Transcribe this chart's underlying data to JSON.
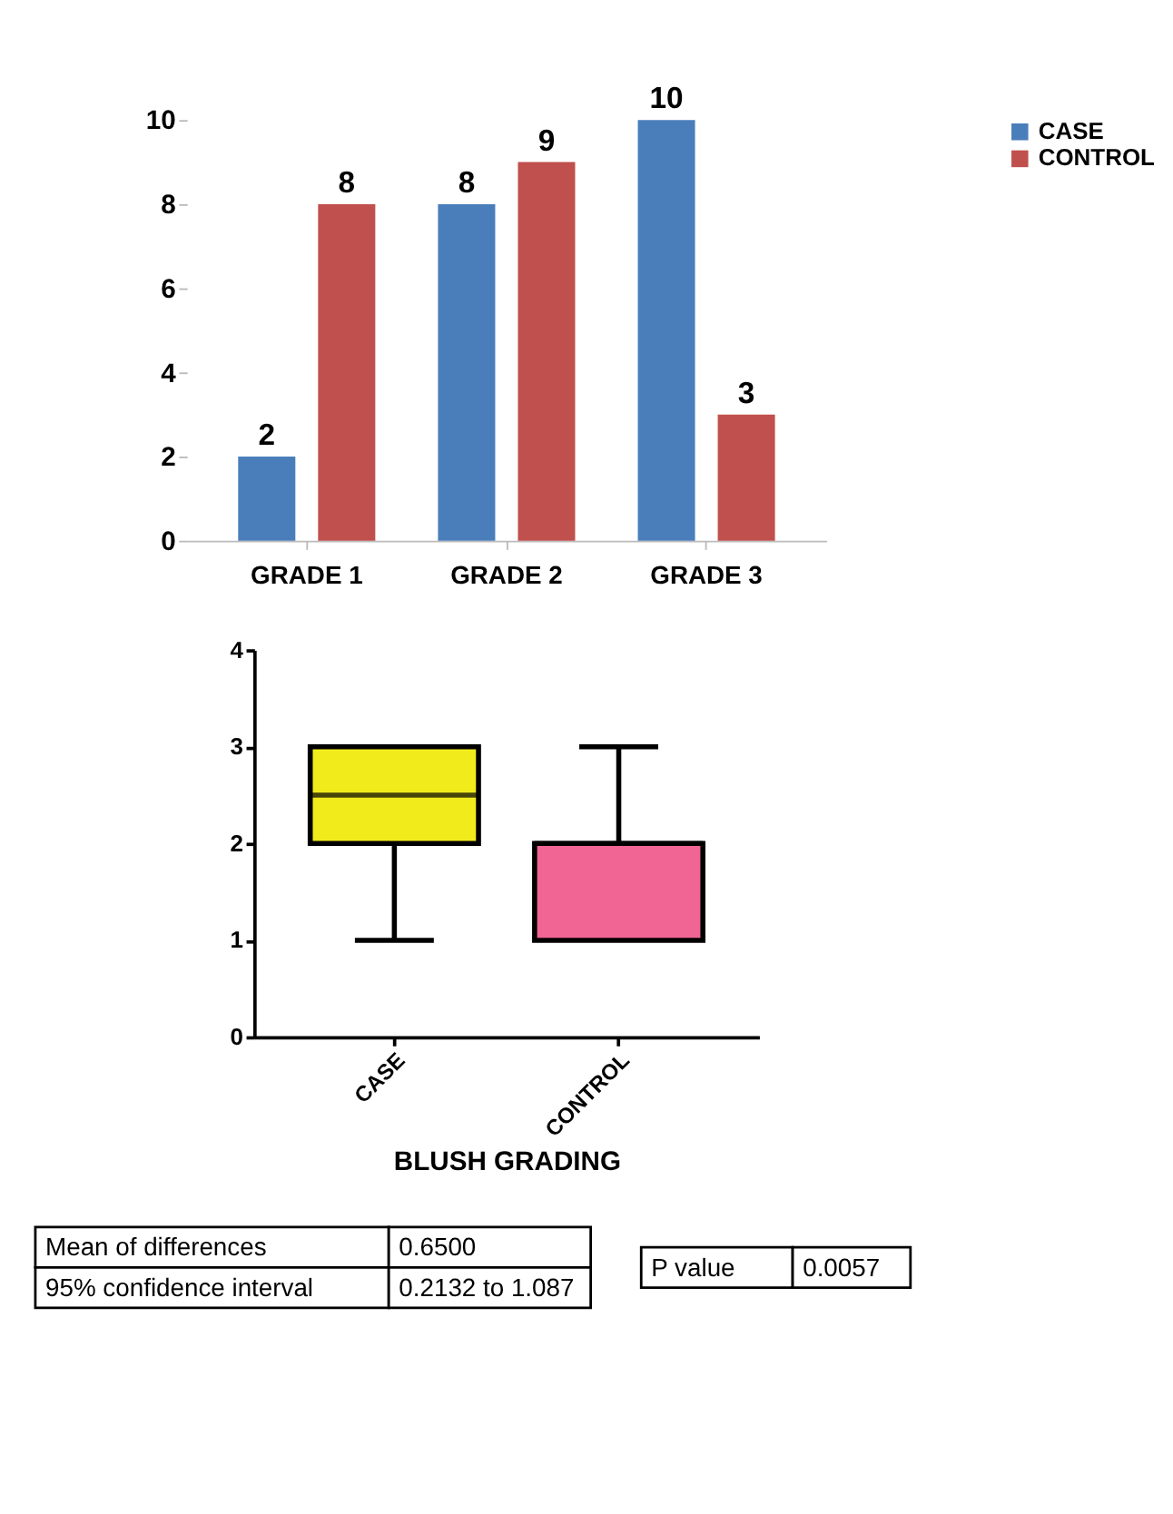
{
  "chart_data": [
    {
      "type": "bar",
      "categories": [
        "GRADE 1",
        "GRADE 2",
        "GRADE 3"
      ],
      "series": [
        {
          "name": "CASE",
          "color": "#4a7ebb",
          "values": [
            2,
            8,
            10
          ]
        },
        {
          "name": "CONTROL",
          "color": "#c0504d",
          "values": [
            8,
            9,
            3
          ]
        }
      ],
      "ylim": [
        0,
        10
      ],
      "yticks": [
        0,
        2,
        4,
        6,
        8,
        10
      ],
      "grid": false,
      "legend": "right",
      "data_labels": true
    },
    {
      "type": "box",
      "xlabel": "BLUSH GRADING",
      "categories": [
        "CASE",
        "CONTROL"
      ],
      "colors": [
        "#f2eb1c",
        "#f06593"
      ],
      "boxes": [
        {
          "low": 1,
          "q1": 2,
          "median": 2.5,
          "q3": 3,
          "high": 3
        },
        {
          "low": 1,
          "q1": 1,
          "median": 2,
          "q3": 2,
          "high": 3
        }
      ],
      "ylim": [
        0,
        4
      ],
      "yticks": [
        0,
        1,
        2,
        3,
        4
      ],
      "grid": false
    },
    {
      "type": "other",
      "annotations": [
        "Mean of differences",
        "0.6500",
        "95% confidence interval",
        "0.2132 to 1.087",
        "P value",
        "0.0057"
      ]
    }
  ]
}
